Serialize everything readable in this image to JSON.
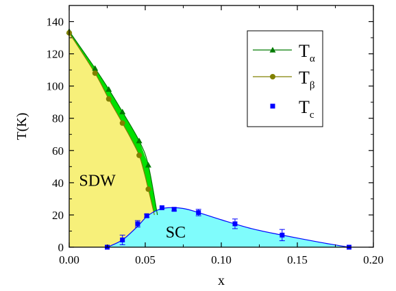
{
  "chart_data": {
    "type": "scatter",
    "xlabel": "x",
    "ylabel": "T(K)",
    "xlim": [
      0,
      0.2
    ],
    "ylim": [
      0,
      150
    ],
    "x_ticks": [
      0.0,
      0.05,
      0.1,
      0.15,
      0.2
    ],
    "x_tick_labels": [
      "0.00",
      "0.05",
      "0.10",
      "0.15",
      "0.20"
    ],
    "y_ticks": [
      0,
      20,
      40,
      60,
      80,
      100,
      120,
      140
    ],
    "y_tick_labels": [
      "0",
      "20",
      "40",
      "60",
      "80",
      "100",
      "120",
      "140"
    ],
    "grid": false,
    "legend_position": "top-right",
    "series": [
      {
        "name": "Tα",
        "marker": "triangle",
        "color": "#007a00",
        "x": [
          0.0,
          0.017,
          0.026,
          0.035,
          0.046,
          0.052
        ],
        "y": [
          134,
          111,
          98,
          84,
          66,
          51
        ]
      },
      {
        "name": "Tβ",
        "marker": "circle",
        "color": "#808000",
        "x": [
          0.0,
          0.017,
          0.026,
          0.035,
          0.046,
          0.052
        ],
        "y": [
          133,
          108,
          92,
          77,
          57,
          36
        ]
      },
      {
        "name": "Tc",
        "marker": "square",
        "color": "#0000ff",
        "x": [
          0.025,
          0.035,
          0.045,
          0.051,
          0.061,
          0.069,
          0.085,
          0.109,
          0.14,
          0.184
        ],
        "y": [
          0,
          4.5,
          14.5,
          19.5,
          24.5,
          23.5,
          21.5,
          14.5,
          7.5,
          0
        ],
        "error": [
          0,
          3,
          2,
          1,
          0,
          1,
          2,
          3,
          3.5,
          0
        ]
      }
    ],
    "legend_entries": [
      {
        "main": "T",
        "sub": "α"
      },
      {
        "main": "T",
        "sub": "β"
      },
      {
        "main": "T",
        "sub": "c"
      }
    ],
    "region_labels": {
      "sdw": "SDW",
      "sc": "SC"
    },
    "region_colors": {
      "sdw": "#f7f07a",
      "sc": "#7ffcfc",
      "gap": "#00e000"
    }
  }
}
